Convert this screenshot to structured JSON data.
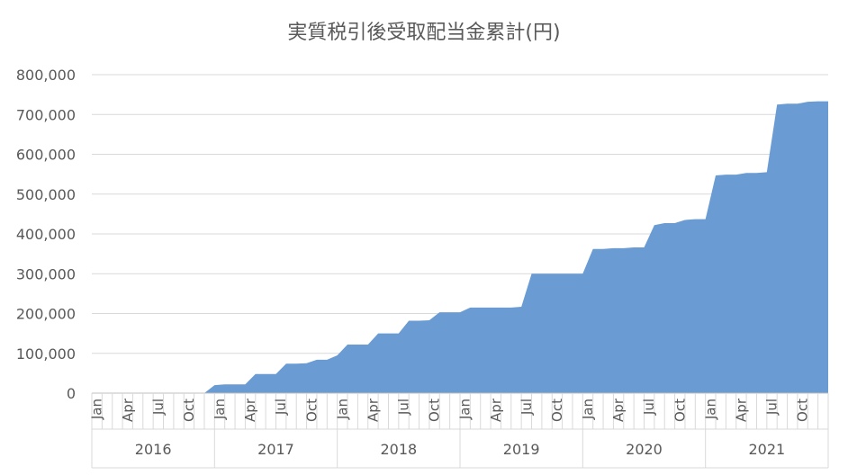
{
  "chart_data": {
    "type": "area",
    "title": "実質税引後受取配当金累計(円)",
    "xlabel": "",
    "ylabel": "",
    "ylim": [
      0,
      800000
    ],
    "yticks": [
      "0",
      "100,000",
      "200,000",
      "300,000",
      "400,000",
      "500,000",
      "600,000",
      "700,000",
      "800,000"
    ],
    "ytick_values": [
      0,
      100000,
      200000,
      300000,
      400000,
      500000,
      600000,
      700000,
      800000
    ],
    "month_ticks": [
      "Jan",
      "Apr",
      "Jul",
      "Oct"
    ],
    "years": [
      "2016",
      "2017",
      "2018",
      "2019",
      "2020",
      "2021"
    ],
    "grid": true,
    "legend": "none",
    "color": "#6a9bd2",
    "series": [
      {
        "values": [
          0,
          0,
          0,
          0,
          0,
          0,
          0,
          0,
          0,
          0,
          0,
          0,
          20000,
          22000,
          22000,
          22000,
          48000,
          48000,
          48000,
          74000,
          74000,
          75000,
          84000,
          84000,
          95000,
          122000,
          122000,
          122000,
          150000,
          150000,
          150000,
          182000,
          182000,
          183000,
          203000,
          203000,
          203000,
          215000,
          215000,
          215000,
          215000,
          215000,
          217000,
          300000,
          300000,
          300000,
          300000,
          300000,
          300000,
          362000,
          362000,
          364000,
          364000,
          366000,
          366000,
          422000,
          427000,
          427000,
          435000,
          437000,
          437000,
          547000,
          549000,
          549000,
          553000,
          553000,
          555000,
          725000,
          727000,
          727000,
          732000,
          733000,
          733000
        ]
      }
    ]
  }
}
